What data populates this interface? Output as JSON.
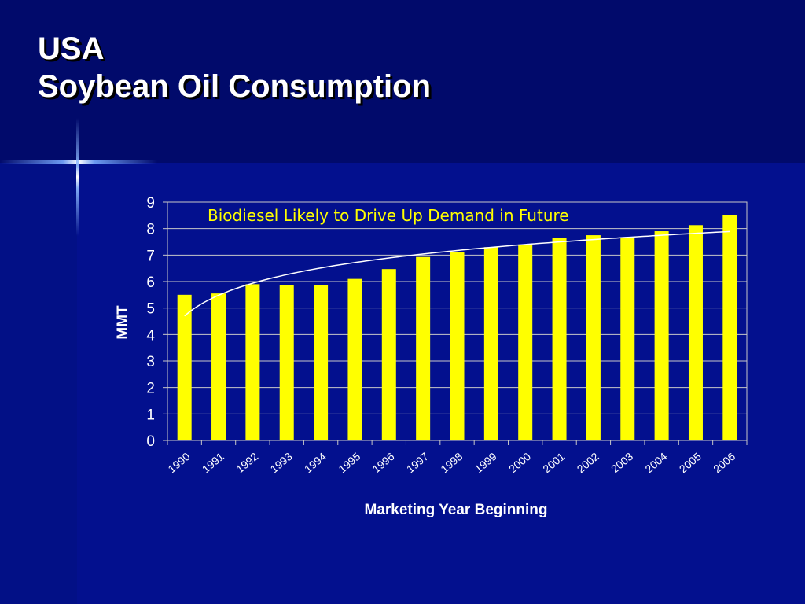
{
  "slide": {
    "title_line1": "USA",
    "title_line2": "Soybean Oil Consumption"
  },
  "colors": {
    "background": "#03108e",
    "header_band": "#010a6b",
    "bar": "#ffff00",
    "trendline": "#ffffff",
    "annotation": "#ffff00",
    "text": "#ffffff"
  },
  "chart_data": {
    "type": "bar",
    "categories": [
      "1990",
      "1991",
      "1992",
      "1993",
      "1994",
      "1995",
      "1996",
      "1997",
      "1998",
      "1999",
      "2000",
      "2001",
      "2002",
      "2003",
      "2004",
      "2005",
      "2006"
    ],
    "values": [
      5.5,
      5.55,
      5.9,
      5.88,
      5.87,
      6.1,
      6.47,
      6.93,
      7.1,
      7.3,
      7.4,
      7.65,
      7.75,
      7.67,
      7.9,
      8.13,
      8.52
    ],
    "trendline": {
      "type": "logarithmic",
      "shown": true
    },
    "title": "",
    "xlabel": "Marketing Year Beginning",
    "ylabel": "MMT",
    "ylim": [
      0,
      9
    ],
    "yticks": [
      "0",
      "1",
      "2",
      "3",
      "4",
      "5",
      "6",
      "7",
      "8",
      "9"
    ],
    "annotation": "Biodiesel Likely to Drive Up Demand in Future",
    "grid": true,
    "legend": "none"
  }
}
